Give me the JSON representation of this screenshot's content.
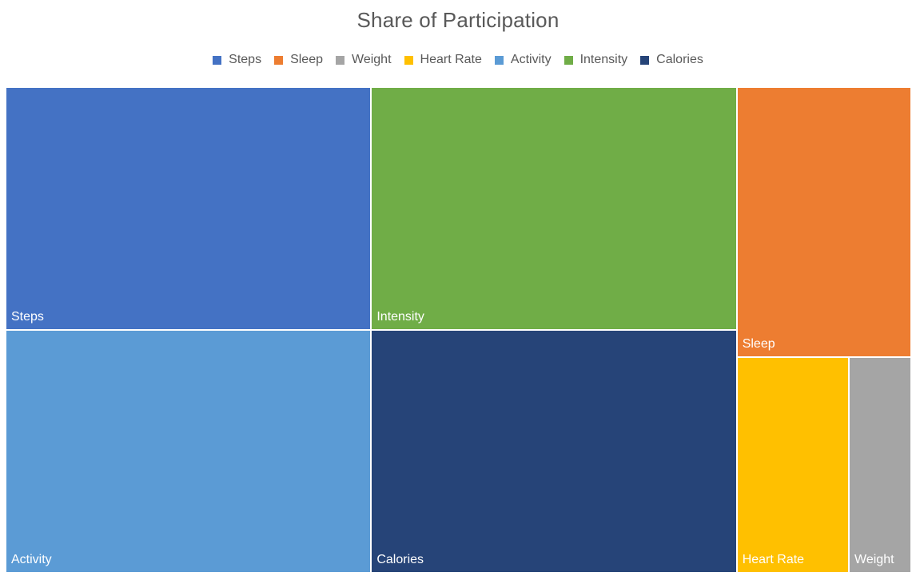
{
  "chart_data": {
    "type": "treemap",
    "title": "Share of Participation",
    "legend_position": "top",
    "categories": [
      "Steps",
      "Sleep",
      "Weight",
      "Heart Rate",
      "Activity",
      "Intensity",
      "Calories"
    ],
    "values": [
      33,
      17.5,
      5,
      9,
      33,
      33,
      33
    ],
    "colors": {
      "Steps": "#4472C4",
      "Sleep": "#ED7D31",
      "Weight": "#A5A5A5",
      "Heart Rate": "#FFC000",
      "Activity": "#5B9BD5",
      "Intensity": "#70AD47",
      "Calories": "#264478"
    }
  }
}
